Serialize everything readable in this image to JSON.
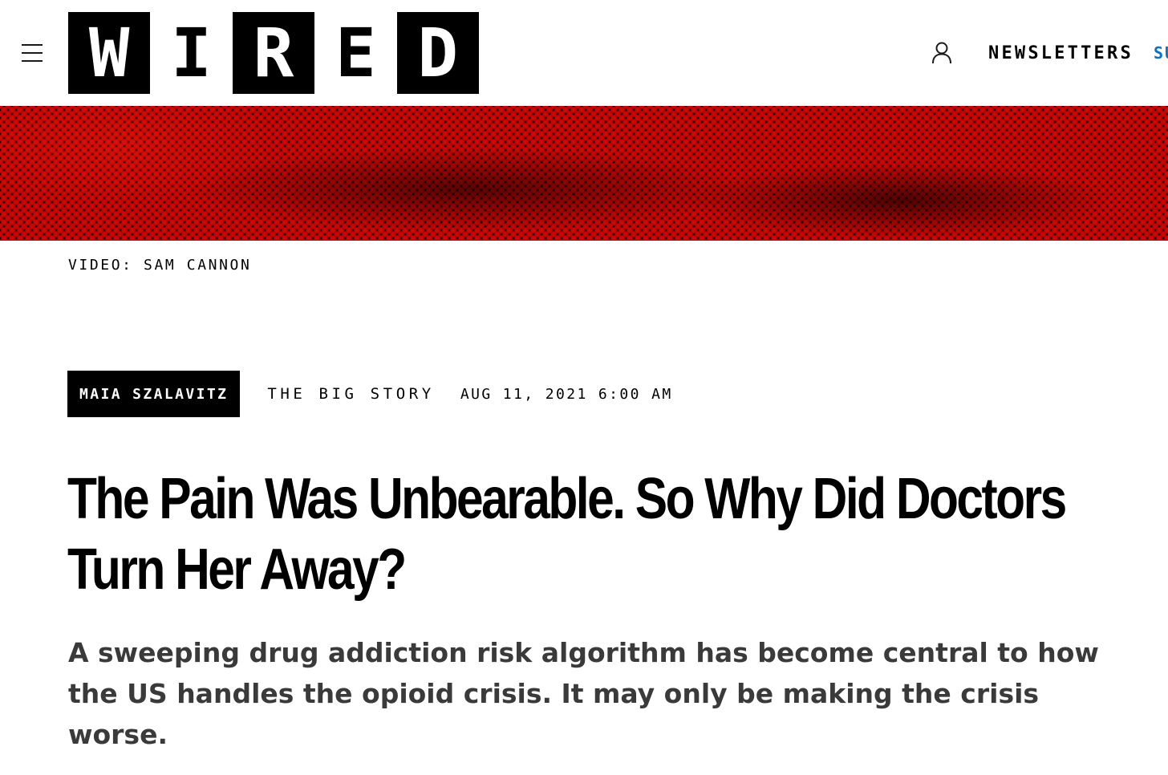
{
  "header": {
    "menu_icon": "hamburger-menu-icon",
    "logo": {
      "letters": [
        "W",
        "I",
        "R",
        "E",
        "D"
      ],
      "style": [
        "solid",
        "open",
        "solid",
        "open",
        "solid"
      ]
    },
    "account_icon": "user-icon",
    "newsletters_label": "NEWSLETTERS",
    "subscribe_label": "SUBSCRIBE",
    "subscribe_color": "#0b72c8"
  },
  "hero": {
    "style": "red-halftone",
    "color": "#c40404"
  },
  "credit": {
    "text": "VIDEO: SAM CANNON"
  },
  "meta": {
    "author": "MAIA SZALAVITZ",
    "rubric": "THE BIG STORY",
    "date": "AUG 11, 2021 6:00 AM"
  },
  "article": {
    "headline": "The Pain Was Unbearable. So Why Did Doctors Turn Her Away?",
    "dek": "A sweeping drug addiction risk algorithm has become central to how the US handles the opioid crisis. It may only be making the crisis worse."
  }
}
